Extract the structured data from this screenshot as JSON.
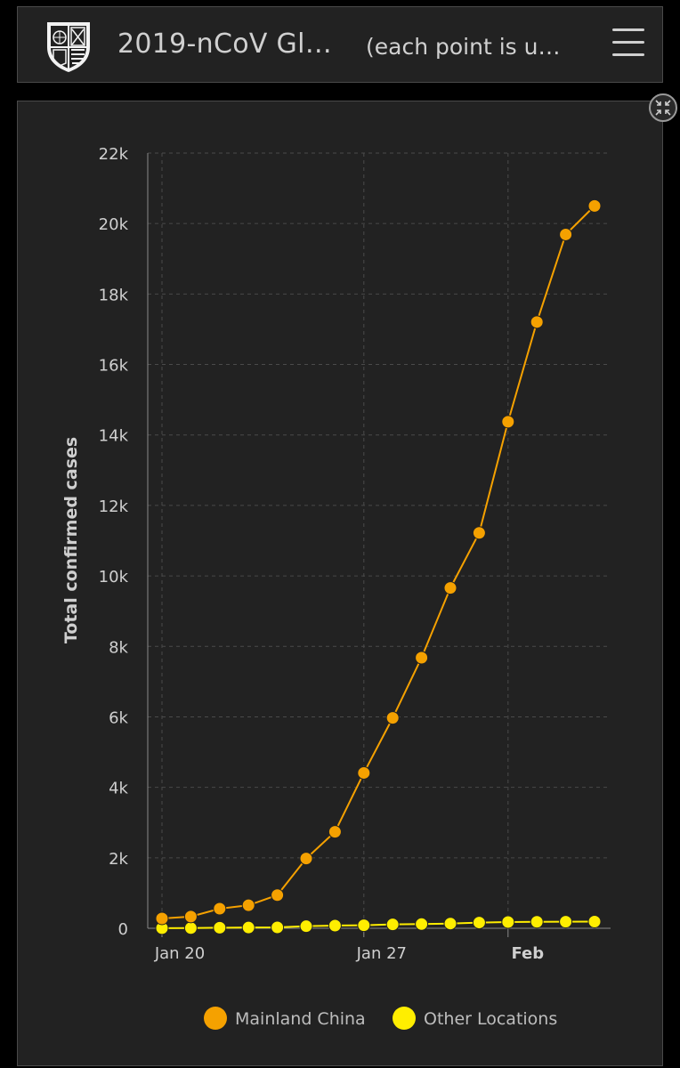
{
  "header": {
    "title": "2019-nCoV Gl…",
    "subtitle": "(each point is u…",
    "logo_icon": "university-shield-icon",
    "menu_icon": "hamburger-menu-icon"
  },
  "panel": {
    "expand_icon": "collapse-arrows-icon"
  },
  "chart_data": {
    "type": "line",
    "ylabel": "Total confirmed cases",
    "xlabel": "",
    "ylim": [
      0,
      22000
    ],
    "yticks": [
      "0",
      "2k",
      "4k",
      "6k",
      "8k",
      "10k",
      "12k",
      "14k",
      "16k",
      "18k",
      "20k",
      "22k"
    ],
    "xticks": [
      {
        "label": "Jan 20",
        "x": "Jan 20"
      },
      {
        "label": "Jan 27",
        "x": "Jan 27"
      },
      {
        "label": "Feb",
        "x": "Feb 1"
      }
    ],
    "grid": true,
    "legend_position": "bottom",
    "x": [
      "Jan 20",
      "Jan 21",
      "Jan 22",
      "Jan 23",
      "Jan 24",
      "Jan 25",
      "Jan 26",
      "Jan 27",
      "Jan 28",
      "Jan 29",
      "Jan 30",
      "Jan 31",
      "Feb 1",
      "Feb 2",
      "Feb 3",
      "Feb 4"
    ],
    "series": [
      {
        "name": "Mainland China",
        "color": "#f5a100",
        "values": [
          278,
          332,
          555,
          653,
          941,
          1979,
          2737,
          4409,
          5970,
          7678,
          9658,
          11221,
          14375,
          17205,
          19690,
          20500
        ]
      },
      {
        "name": "Other Locations",
        "color": "#ffee00",
        "values": [
          4,
          6,
          16,
          21,
          26,
          59,
          76,
          86,
          109,
          119,
          134,
          162,
          177,
          183,
          187,
          190
        ]
      }
    ]
  }
}
